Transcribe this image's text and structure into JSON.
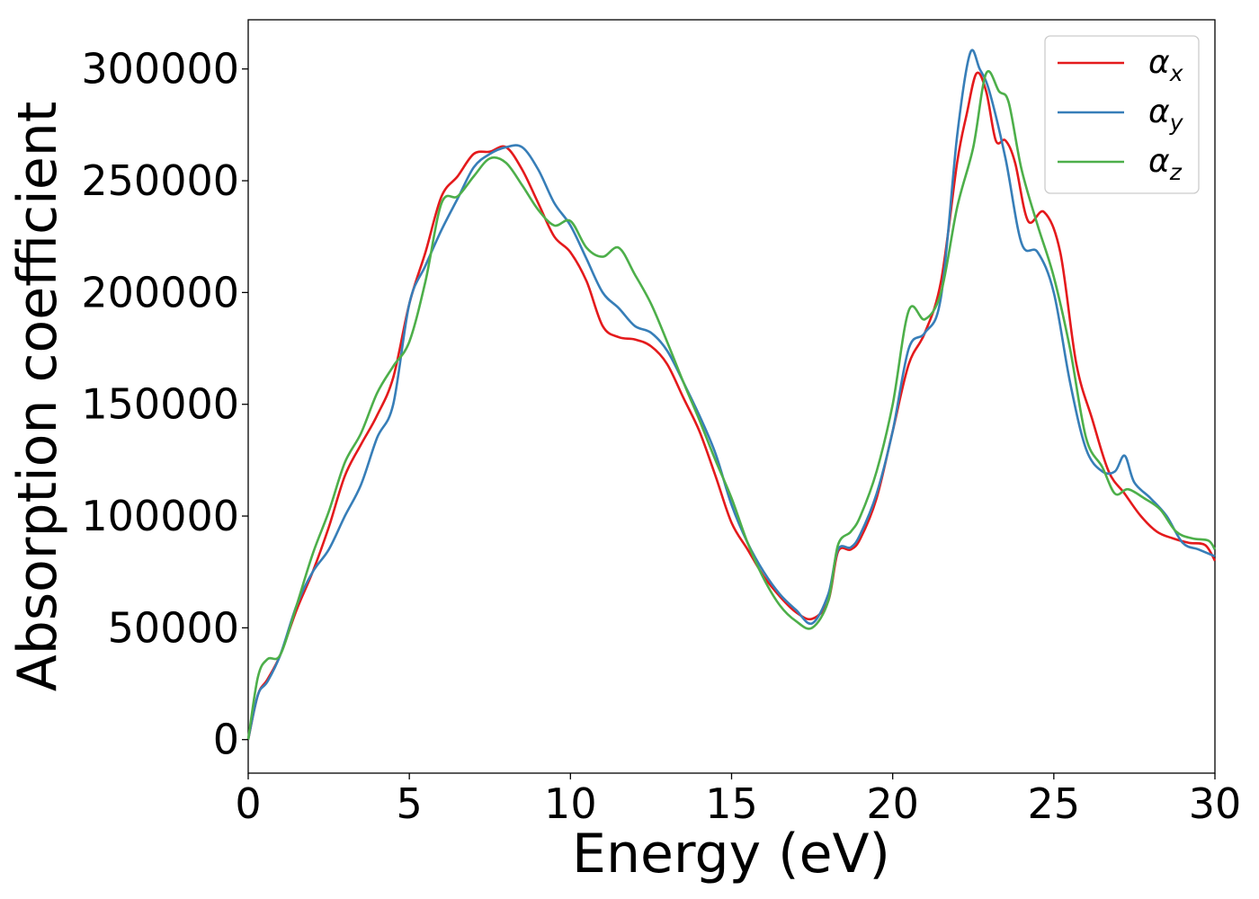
{
  "chart_data": {
    "type": "line",
    "title": "",
    "xlabel": "Energy (eV)",
    "ylabel": "Absorption coefficient",
    "xlim": [
      0,
      30
    ],
    "ylim": [
      -15000,
      322000
    ],
    "xticks": [
      0,
      5,
      10,
      15,
      20,
      25,
      30
    ],
    "yticks": [
      0,
      50000,
      100000,
      150000,
      200000,
      250000,
      300000
    ],
    "grid": false,
    "legend_position": "top-right",
    "series": [
      {
        "name": "αx",
        "symbol": "α",
        "subscript": "x",
        "color": "#e41a1c",
        "x": [
          0,
          0.3,
          0.6,
          1,
          1.5,
          2,
          2.5,
          3,
          3.5,
          4,
          4.5,
          5,
          5.5,
          6,
          6.5,
          7,
          7.5,
          8,
          8.5,
          9,
          9.5,
          10,
          10.5,
          11,
          11.5,
          12,
          12.5,
          13,
          13.5,
          14,
          14.5,
          15,
          15.5,
          16,
          16.5,
          17,
          17.5,
          18,
          18.3,
          18.7,
          19,
          19.5,
          20,
          20.5,
          21,
          21.5,
          22,
          22.3,
          22.6,
          22.9,
          23.2,
          23.5,
          23.8,
          24.2,
          24.7,
          25.2,
          25.7,
          26.2,
          26.7,
          27.2,
          27.7,
          28.2,
          28.7,
          29.2,
          29.7,
          30
        ],
        "y": [
          0,
          20000,
          27000,
          38000,
          58000,
          75000,
          95000,
          118000,
          132000,
          145000,
          162000,
          195000,
          218000,
          243000,
          252000,
          262000,
          263000,
          265000,
          255000,
          240000,
          225000,
          218000,
          205000,
          185000,
          180000,
          179000,
          176000,
          168000,
          153000,
          138000,
          118000,
          97000,
          85000,
          73000,
          64000,
          57000,
          54000,
          62000,
          84000,
          85000,
          90000,
          108000,
          138000,
          168000,
          182000,
          205000,
          258000,
          280000,
          298000,
          290000,
          268000,
          268000,
          258000,
          232000,
          236000,
          218000,
          168000,
          143000,
          120000,
          110000,
          100000,
          93000,
          90000,
          88000,
          87000,
          80000
        ]
      },
      {
        "name": "αy",
        "symbol": "α",
        "subscript": "y",
        "color": "#377eb8",
        "x": [
          0,
          0.3,
          0.6,
          1,
          1.5,
          2,
          2.5,
          3,
          3.5,
          4,
          4.5,
          5,
          5.5,
          6,
          6.5,
          7,
          7.5,
          8,
          8.5,
          9,
          9.5,
          10,
          10.5,
          11,
          11.5,
          12,
          12.5,
          13,
          13.5,
          14,
          14.5,
          15,
          15.5,
          16,
          16.5,
          17,
          17.5,
          18,
          18.3,
          18.7,
          19,
          19.5,
          20,
          20.5,
          21,
          21.5,
          22,
          22.4,
          22.7,
          23,
          23.5,
          24,
          24.5,
          25,
          25.5,
          26,
          26.5,
          26.9,
          27.2,
          27.5,
          28,
          28.5,
          29,
          29.5,
          30
        ],
        "y": [
          0,
          20000,
          26000,
          38000,
          60000,
          75000,
          85000,
          100000,
          114000,
          135000,
          150000,
          195000,
          212000,
          228000,
          242000,
          256000,
          262000,
          265000,
          265000,
          255000,
          240000,
          230000,
          215000,
          200000,
          193000,
          185000,
          182000,
          174000,
          160000,
          145000,
          128000,
          105000,
          88000,
          75000,
          65000,
          58000,
          52000,
          65000,
          85000,
          86000,
          92000,
          110000,
          138000,
          175000,
          182000,
          198000,
          270000,
          307000,
          300000,
          290000,
          260000,
          222000,
          218000,
          200000,
          160000,
          130000,
          120000,
          120000,
          127000,
          115000,
          108000,
          100000,
          88000,
          85000,
          82000
        ]
      },
      {
        "name": "αz",
        "symbol": "α",
        "subscript": "z",
        "color": "#4daf4a",
        "x": [
          0,
          0.3,
          0.6,
          1,
          1.5,
          2,
          2.5,
          3,
          3.5,
          4,
          4.5,
          5,
          5.5,
          6,
          6.5,
          7,
          7.5,
          8,
          8.5,
          9,
          9.5,
          10,
          10.5,
          11,
          11.5,
          12,
          12.5,
          13,
          13.5,
          14,
          14.5,
          15,
          15.5,
          16,
          16.5,
          17,
          17.5,
          18,
          18.3,
          18.7,
          19,
          19.5,
          20,
          20.5,
          21,
          21.5,
          22,
          22.5,
          22.9,
          23.3,
          23.6,
          24,
          24.5,
          25,
          25.5,
          26,
          26.5,
          26.9,
          27.3,
          27.8,
          28.3,
          28.8,
          29.3,
          29.8,
          30
        ],
        "y": [
          0,
          28000,
          36000,
          38000,
          60000,
          83000,
          102000,
          124000,
          137000,
          155000,
          167000,
          178000,
          205000,
          240000,
          243000,
          252000,
          260000,
          258000,
          248000,
          237000,
          230000,
          232000,
          220000,
          216000,
          220000,
          208000,
          195000,
          178000,
          160000,
          143000,
          125000,
          108000,
          88000,
          72000,
          60000,
          53000,
          50000,
          62000,
          87000,
          93000,
          100000,
          120000,
          150000,
          192000,
          188000,
          200000,
          238000,
          265000,
          298000,
          290000,
          285000,
          255000,
          230000,
          207000,
          175000,
          135000,
          122000,
          110000,
          112000,
          108000,
          103000,
          93000,
          90000,
          89000,
          85000
        ]
      }
    ]
  }
}
